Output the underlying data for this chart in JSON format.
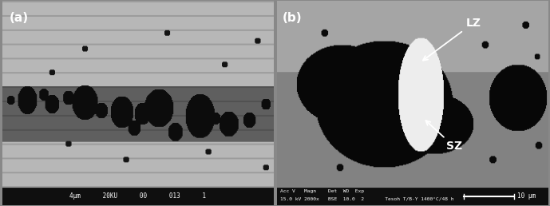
{
  "figsize": [
    6.89,
    2.58
  ],
  "dpi": 100,
  "left_image": {
    "label": "(a)",
    "label_color": "white",
    "label_fontsize": 11,
    "footer_text": "4μm      20KU      00      013      1",
    "footer_color": "white"
  },
  "right_image": {
    "label": "(b)",
    "label_color": "white",
    "label_fontsize": 11,
    "annotation_LZ": "LZ",
    "annotation_SZ": "SZ",
    "footer_line1": "Acc V   Magn    Det  WD  Exp",
    "footer_line2": "15.0 kV 2000x   BSE  10.0  2       Tesoh T/B-Y 1400°C/48 h",
    "scalebar_label": "10 μm",
    "footer_color": "white"
  }
}
